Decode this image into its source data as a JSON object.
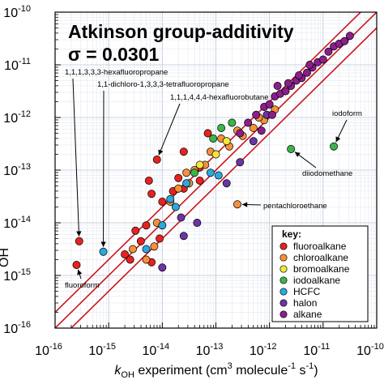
{
  "chart_data": {
    "type": "scatter",
    "title": "Atkinson group-additivity",
    "sigma_label": "σ = 0.0301",
    "xlabel": {
      "k": "k",
      "k_sub": "OH",
      "mid": " experiment (cm",
      "cube": "3",
      "mid2": " molecule",
      "neg1a": "-1",
      "s": " s",
      "neg1b": "-1",
      "end": ")"
    },
    "ylabel_fragment": "OH",
    "x_scale": "log",
    "y_scale": "log",
    "xlim": [
      -16,
      -10
    ],
    "ylim": [
      -16,
      -10
    ],
    "x_ticks": [
      "10",
      "10",
      "10",
      "10",
      "10",
      "10",
      "10"
    ],
    "x_tick_exps": [
      "-16",
      "-15",
      "-14",
      "-13",
      "-12",
      "-11",
      "-10"
    ],
    "y_ticks": [
      "10",
      "10",
      "10",
      "10",
      "10",
      "10",
      "10"
    ],
    "y_tick_exps": [
      "-16",
      "-15",
      "-14",
      "-13",
      "-12",
      "-11",
      "-10"
    ],
    "grid": true,
    "lines": {
      "one_to_one": "y = x",
      "band_factor_log10": 0.3
    },
    "legend": {
      "title": "key:",
      "placement": "bottom-right",
      "entries": [
        {
          "name": "fluoroalkane",
          "color": "#e8221e"
        },
        {
          "name": "chloroalkane",
          "color": "#f5903a"
        },
        {
          "name": "bromoalkane",
          "color": "#f2e73c"
        },
        {
          "name": "iodoalkane",
          "color": "#3bb54a"
        },
        {
          "name": "HCFC",
          "color": "#29a9e0"
        },
        {
          "name": "halon",
          "color": "#6a35a6"
        },
        {
          "name": "alkane",
          "color": "#8b1e8c"
        }
      ]
    },
    "annotations": [
      {
        "text": "1,1,1,3,3,3-hexafluoropropane",
        "point": [
          -15.55,
          -14.35
        ]
      },
      {
        "text": "1,1-dichloro-1,3,3,3-tetrafluoropropane",
        "point": [
          -15.1,
          -14.55
        ]
      },
      {
        "text": "1,1,1,4,4,4-hexafluorobutane",
        "point": [
          -14.1,
          -12.8
        ]
      },
      {
        "text": "iodoform",
        "point": [
          -10.8,
          -12.55
        ]
      },
      {
        "text": "diiodomethane",
        "point": [
          -11.6,
          -12.6
        ]
      },
      {
        "text": "pentachloroethane",
        "point": [
          -12.6,
          -13.65
        ]
      },
      {
        "text": "fluoroform",
        "point": [
          -15.6,
          -14.8
        ]
      }
    ],
    "series": [
      {
        "name": "fluoroalkane",
        "color": "#e8221e",
        "points": [
          [
            -15.55,
            -14.35
          ],
          [
            -15.6,
            -14.8
          ],
          [
            -14.1,
            -12.8
          ],
          [
            -13.6,
            -12.65
          ],
          [
            -14.6,
            -14.7
          ],
          [
            -14.4,
            -14.35
          ],
          [
            -14.5,
            -14.15
          ],
          [
            -14.3,
            -14.05
          ],
          [
            -14.7,
            -14.6
          ],
          [
            -14.2,
            -14.75
          ],
          [
            -14.05,
            -14.3
          ],
          [
            -14.2,
            -13.45
          ],
          [
            -14.25,
            -13.2
          ],
          [
            -14.0,
            -13.6
          ],
          [
            -13.6,
            -13.35
          ],
          [
            -13.7,
            -13.15
          ],
          [
            -13.3,
            -12.95
          ],
          [
            -13.15,
            -12.3
          ],
          [
            -13.3,
            -13.2
          ],
          [
            -13.8,
            -13.4
          ]
        ]
      },
      {
        "name": "chloroalkane",
        "color": "#f5903a",
        "points": [
          [
            -12.6,
            -13.65
          ],
          [
            -14.55,
            -14.5
          ],
          [
            -14.3,
            -14.7
          ],
          [
            -14.15,
            -14.45
          ],
          [
            -14.1,
            -14.0
          ],
          [
            -13.85,
            -13.6
          ],
          [
            -13.7,
            -13.35
          ],
          [
            -13.5,
            -13.25
          ],
          [
            -13.4,
            -13.0
          ],
          [
            -13.2,
            -12.9
          ],
          [
            -12.9,
            -12.4
          ],
          [
            -12.75,
            -12.55
          ],
          [
            -12.5,
            -12.35
          ],
          [
            -12.3,
            -12.2
          ],
          [
            -12.1,
            -12.05
          ],
          [
            -11.9,
            -11.85
          ],
          [
            -12.2,
            -12.0
          ],
          [
            -12.6,
            -12.25
          ],
          [
            -13.1,
            -12.65
          ],
          [
            -13.55,
            -13.05
          ]
        ]
      },
      {
        "name": "bromoalkane",
        "color": "#f2e73c",
        "points": [
          [
            -13.0,
            -12.7
          ],
          [
            -13.3,
            -12.9
          ],
          [
            -12.8,
            -12.45
          ]
        ]
      },
      {
        "name": "iodoalkane",
        "color": "#3bb54a",
        "points": [
          [
            -10.8,
            -12.55
          ],
          [
            -11.6,
            -12.6
          ],
          [
            -12.9,
            -12.2
          ],
          [
            -13.05,
            -12.4
          ],
          [
            -12.7,
            -12.1
          ],
          [
            -13.4,
            -13.05
          ]
        ]
      },
      {
        "name": "HCFC",
        "color": "#29a9e0",
        "points": [
          [
            -15.1,
            -14.55
          ],
          [
            -14.3,
            -14.5
          ],
          [
            -14.0,
            -14.05
          ],
          [
            -13.85,
            -13.55
          ],
          [
            -13.75,
            -13.7
          ],
          [
            -13.55,
            -13.25
          ],
          [
            -13.1,
            -13.05
          ],
          [
            -12.95,
            -13.1
          ]
        ]
      },
      {
        "name": "halon",
        "color": "#6a35a6",
        "points": [
          [
            -14.0,
            -14.85
          ],
          [
            -13.6,
            -14.25
          ],
          [
            -13.35,
            -14.0
          ],
          [
            -12.8,
            -13.25
          ],
          [
            -12.55,
            -12.85
          ],
          [
            -12.3,
            -12.45
          ],
          [
            -12.05,
            -11.95
          ],
          [
            -13.65,
            -13.9
          ]
        ]
      },
      {
        "name": "alkane",
        "color": "#8b1e8c",
        "points": [
          [
            -12.25,
            -11.95
          ],
          [
            -12.1,
            -11.8
          ],
          [
            -12.0,
            -11.75
          ],
          [
            -11.9,
            -11.6
          ],
          [
            -11.8,
            -11.55
          ],
          [
            -11.7,
            -11.5
          ],
          [
            -11.6,
            -11.4
          ],
          [
            -11.5,
            -11.3
          ],
          [
            -11.4,
            -11.25
          ],
          [
            -11.3,
            -11.15
          ],
          [
            -11.2,
            -11.05
          ],
          [
            -11.1,
            -10.95
          ],
          [
            -11.0,
            -10.9
          ],
          [
            -10.9,
            -10.75
          ],
          [
            -10.8,
            -10.65
          ],
          [
            -10.7,
            -10.6
          ],
          [
            -10.6,
            -10.55
          ],
          [
            -10.5,
            -10.45
          ],
          [
            -11.85,
            -11.4
          ],
          [
            -11.65,
            -11.35
          ],
          [
            -11.45,
            -11.2
          ],
          [
            -12.4,
            -12.1
          ],
          [
            -12.55,
            -12.3
          ],
          [
            -11.25,
            -11.0
          ],
          [
            -12.15,
            -12.25
          ],
          [
            -11.95,
            -11.95
          ]
        ]
      }
    ]
  }
}
